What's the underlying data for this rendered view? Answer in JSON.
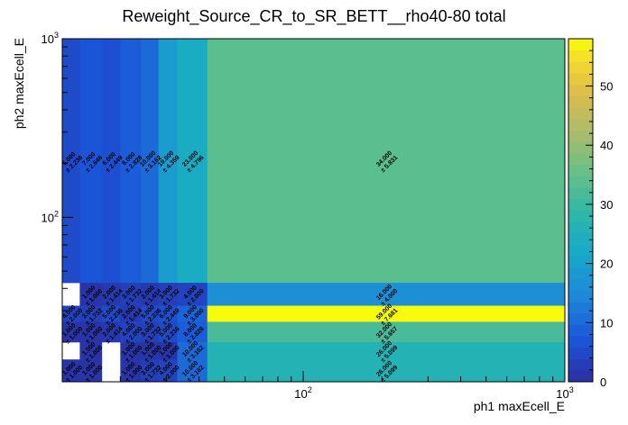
{
  "chart_data": {
    "type": "heatmap",
    "title": "Reweight_Source_CR_to_SR_BETT__rho40-80 total",
    "xlabel": "ph1 maxEcell_E",
    "ylabel": "ph2 maxEcell_E",
    "xscale": "log",
    "yscale": "log",
    "xlim": [
      12,
      1000
    ],
    "ylim": [
      12,
      1000
    ],
    "x_edges": [
      12,
      14,
      17,
      20,
      24,
      28,
      33,
      43,
      1000
    ],
    "y_edges": [
      12,
      16,
      20,
      26,
      32,
      43,
      1000
    ],
    "x_ticks": [
      {
        "value": 100,
        "label": "10²"
      },
      {
        "value": 1000,
        "label": "10³"
      }
    ],
    "y_ticks": [
      {
        "value": 100,
        "label": "10²"
      },
      {
        "value": 1000,
        "label": "10³"
      }
    ],
    "colorbar": {
      "min": 0,
      "max": 58,
      "ticks": [
        0,
        10,
        20,
        30,
        40,
        50
      ]
    },
    "cells": [
      {
        "ix": 0,
        "iy": 5,
        "value": 5,
        "err": 2.236,
        "label": "5.000",
        "elabel": "± 2.236"
      },
      {
        "ix": 1,
        "iy": 5,
        "value": 7,
        "err": 2.646,
        "label": "7.000",
        "elabel": "± 2.646"
      },
      {
        "ix": 2,
        "iy": 5,
        "value": 6,
        "err": 2.449,
        "label": "6.000",
        "elabel": "± 2.449"
      },
      {
        "ix": 3,
        "iy": 5,
        "value": 8,
        "err": 2.828,
        "label": "8.000",
        "elabel": "± 2.828"
      },
      {
        "ix": 4,
        "iy": 5,
        "value": 10,
        "err": 3.162,
        "label": "10.000",
        "elabel": "± 3.162"
      },
      {
        "ix": 5,
        "iy": 5,
        "value": 19,
        "err": 4.359,
        "label": "19.000",
        "elabel": "± 4.359"
      },
      {
        "ix": 6,
        "iy": 5,
        "value": 23,
        "err": 4.796,
        "label": "23.000",
        "elabel": "± 4.796"
      },
      {
        "ix": 7,
        "iy": 5,
        "value": 34,
        "err": 5.831,
        "label": "34.000",
        "elabel": "± 5.831"
      },
      {
        "ix": 0,
        "iy": 4,
        "value": 0,
        "err": 0,
        "label": "",
        "elabel": ""
      },
      {
        "ix": 1,
        "iy": 4,
        "value": 1,
        "err": 1,
        "label": "1.000",
        "elabel": "± 1.000"
      },
      {
        "ix": 2,
        "iy": 4,
        "value": 2,
        "err": 1.414,
        "label": "2.000",
        "elabel": "± 1.414"
      },
      {
        "ix": 3,
        "iy": 4,
        "value": 3,
        "err": 1.732,
        "label": "3.000",
        "elabel": "± 1.732"
      },
      {
        "ix": 4,
        "iy": 4,
        "value": 2,
        "err": 1.414,
        "label": "2.000",
        "elabel": "± 1.414"
      },
      {
        "ix": 5,
        "iy": 4,
        "value": 3,
        "err": 1.732,
        "label": "3.000",
        "elabel": "± 1.732"
      },
      {
        "ix": 6,
        "iy": 4,
        "value": 4,
        "err": 2,
        "label": "4.000",
        "elabel": "± 2.000"
      },
      {
        "ix": 7,
        "iy": 4,
        "value": 16,
        "err": 4,
        "label": "16.000",
        "elabel": "± 4.000"
      },
      {
        "ix": 0,
        "iy": 3,
        "value": 4,
        "err": 2,
        "label": "4.000",
        "elabel": "± 2.000"
      },
      {
        "ix": 1,
        "iy": 3,
        "value": 3,
        "err": 1.732,
        "label": "3.000",
        "elabel": "± 1.732"
      },
      {
        "ix": 2,
        "iy": 3,
        "value": 5,
        "err": 2.236,
        "label": "5.000",
        "elabel": "± 2.236"
      },
      {
        "ix": 3,
        "iy": 3,
        "value": 2,
        "err": 1.414,
        "label": "2.000",
        "elabel": "± 1.414"
      },
      {
        "ix": 4,
        "iy": 3,
        "value": 5,
        "err": 2.236,
        "label": "5.000",
        "elabel": "± 2.236"
      },
      {
        "ix": 5,
        "iy": 3,
        "value": 6,
        "err": 2.449,
        "label": "6.000",
        "elabel": "± 2.449"
      },
      {
        "ix": 6,
        "iy": 3,
        "value": 9,
        "err": 3,
        "label": "9.000",
        "elabel": "± 3.000"
      },
      {
        "ix": 7,
        "iy": 3,
        "value": 59,
        "err": 7.681,
        "label": "59.000",
        "elabel": "± 7.681"
      },
      {
        "ix": 0,
        "iy": 2,
        "value": 1,
        "err": 1,
        "label": "1.000",
        "elabel": "± 1.000"
      },
      {
        "ix": 1,
        "iy": 2,
        "value": 1,
        "err": 1,
        "label": "1.000",
        "elabel": "± 1.000"
      },
      {
        "ix": 2,
        "iy": 2,
        "value": 2,
        "err": 1.414,
        "label": "2.000",
        "elabel": "± 1.414"
      },
      {
        "ix": 3,
        "iy": 2,
        "value": 4,
        "err": 2,
        "label": "4.000",
        "elabel": "± 2.000"
      },
      {
        "ix": 4,
        "iy": 2,
        "value": 3,
        "err": 1.732,
        "label": "3.000",
        "elabel": "± 1.732"
      },
      {
        "ix": 5,
        "iy": 2,
        "value": 5,
        "err": 2.236,
        "label": "5.000",
        "elabel": "± 2.236"
      },
      {
        "ix": 6,
        "iy": 2,
        "value": 8,
        "err": 2.828,
        "label": "8.000",
        "elabel": "± 2.828"
      },
      {
        "ix": 7,
        "iy": 2,
        "value": 32,
        "err": 5.657,
        "label": "32.000",
        "elabel": "± 5.657"
      },
      {
        "ix": 0,
        "iy": 1,
        "value": 0,
        "err": 0,
        "label": "",
        "elabel": ""
      },
      {
        "ix": 1,
        "iy": 1,
        "value": 1,
        "err": 1,
        "label": "1.000",
        "elabel": "± 1.000"
      },
      {
        "ix": 2,
        "iy": 1,
        "value": 0,
        "err": 0,
        "label": "",
        "elabel": ""
      },
      {
        "ix": 3,
        "iy": 1,
        "value": 1,
        "err": 1,
        "label": "1.000",
        "elabel": "± 1.000"
      },
      {
        "ix": 4,
        "iy": 1,
        "value": 1,
        "err": 1,
        "label": "1.000",
        "elabel": "± 1.000"
      },
      {
        "ix": 5,
        "iy": 1,
        "value": 1,
        "err": 1,
        "label": "1.000",
        "elabel": "± 1.000"
      },
      {
        "ix": 6,
        "iy": 1,
        "value": 10,
        "err": 3.162,
        "label": "10.000",
        "elabel": "± 3.162"
      },
      {
        "ix": 7,
        "iy": 1,
        "value": 26,
        "err": 5.099,
        "label": "26.000",
        "elabel": "± 5.099"
      },
      {
        "ix": 0,
        "iy": 0,
        "value": 1,
        "err": 1,
        "label": "1.000",
        "elabel": "± 1.000"
      },
      {
        "ix": 1,
        "iy": 0,
        "value": 1,
        "err": 1,
        "label": "1.000",
        "elabel": "± 1.000"
      },
      {
        "ix": 2,
        "iy": 0,
        "value": 0,
        "err": 0,
        "label": "",
        "elabel": ""
      },
      {
        "ix": 3,
        "iy": 0,
        "value": 1,
        "err": 1,
        "label": "1.000",
        "elabel": "± 1.000"
      },
      {
        "ix": 4,
        "iy": 0,
        "value": 3,
        "err": 1.732,
        "label": "3.000",
        "elabel": "± 1.732"
      },
      {
        "ix": 5,
        "iy": 0,
        "value": 4,
        "err": 2,
        "label": "4.000",
        "elabel": "± 2.000"
      },
      {
        "ix": 6,
        "iy": 0,
        "value": 10,
        "err": 3.162,
        "label": "10.000",
        "elabel": "± 3.162"
      },
      {
        "ix": 7,
        "iy": 0,
        "value": 26,
        "err": 5.099,
        "label": "26.000",
        "elabel": "± 5.099"
      }
    ]
  }
}
